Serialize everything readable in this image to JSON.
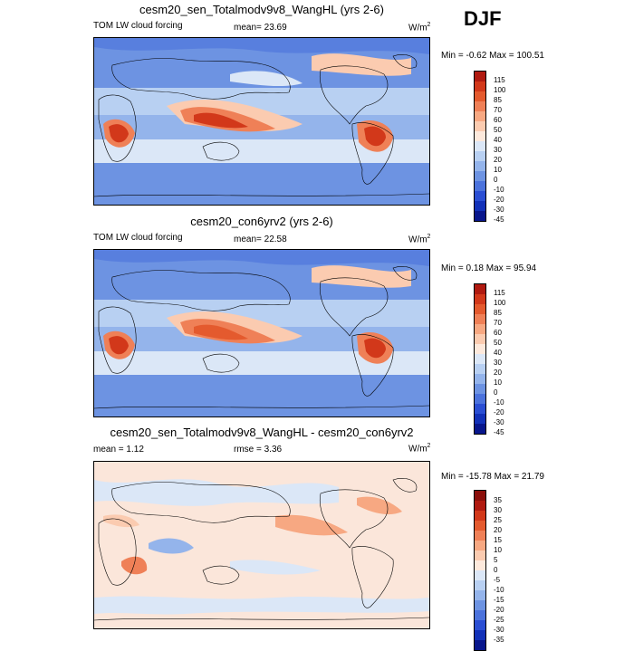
{
  "season": "DJF",
  "panels": [
    {
      "title": "cesm20_sen_Totalmodv9v8_WangHL (yrs 2-6)",
      "left_label": "TOM LW cloud forcing",
      "mid_label": "mean=  23.69",
      "units": "W/m",
      "units_sup": "2",
      "minmax": "Min =  -0.62 Max = 100.51",
      "levels": [
        "115",
        "100",
        "85",
        "70",
        "60",
        "50",
        "40",
        "30",
        "20",
        "10",
        "0",
        "-10",
        "-20",
        "-30",
        "-45"
      ],
      "colors": [
        "#b01a10",
        "#d2381a",
        "#e45a2e",
        "#ef8057",
        "#f7a882",
        "#fbcbb0",
        "#fde9dc",
        "#dbe7f7",
        "#b8d0f2",
        "#94b4eb",
        "#6d93e2",
        "#4b72dc",
        "#2a4ed3",
        "#1231b8",
        "#08168c"
      ]
    },
    {
      "title": "cesm20_con6yrv2 (yrs 2-6)",
      "left_label": "TOM LW cloud forcing",
      "mid_label": "mean=  22.58",
      "units": "W/m",
      "units_sup": "2",
      "minmax": "Min =  0.18 Max = 95.94",
      "levels": [
        "115",
        "100",
        "85",
        "70",
        "60",
        "50",
        "40",
        "30",
        "20",
        "10",
        "0",
        "-10",
        "-20",
        "-30",
        "-45"
      ],
      "colors": [
        "#b01a10",
        "#d2381a",
        "#e45a2e",
        "#ef8057",
        "#f7a882",
        "#fbcbb0",
        "#fde9dc",
        "#dbe7f7",
        "#b8d0f2",
        "#94b4eb",
        "#6d93e2",
        "#4b72dc",
        "#2a4ed3",
        "#1231b8",
        "#08168c"
      ]
    },
    {
      "title": "cesm20_sen_Totalmodv9v8_WangHL - cesm20_con6yrv2",
      "left_label": "mean =   1.12",
      "mid_label": "rmse =   3.36",
      "units": "W/m",
      "units_sup": "2",
      "minmax": "Min = -15.78 Max =  21.79",
      "levels": [
        "35",
        "30",
        "25",
        "20",
        "15",
        "10",
        "5",
        "0",
        "-5",
        "-10",
        "-15",
        "-20",
        "-25",
        "-30",
        "-35"
      ],
      "colors": [
        "#8a0e0a",
        "#b01a10",
        "#d2381a",
        "#e45a2e",
        "#ef8057",
        "#f7a882",
        "#fbcbb0",
        "#fde9dc",
        "#dbe7f7",
        "#b8d0f2",
        "#94b4eb",
        "#6d93e2",
        "#4b72dc",
        "#2a4ed3",
        "#1231b8",
        "#08168c"
      ]
    }
  ]
}
